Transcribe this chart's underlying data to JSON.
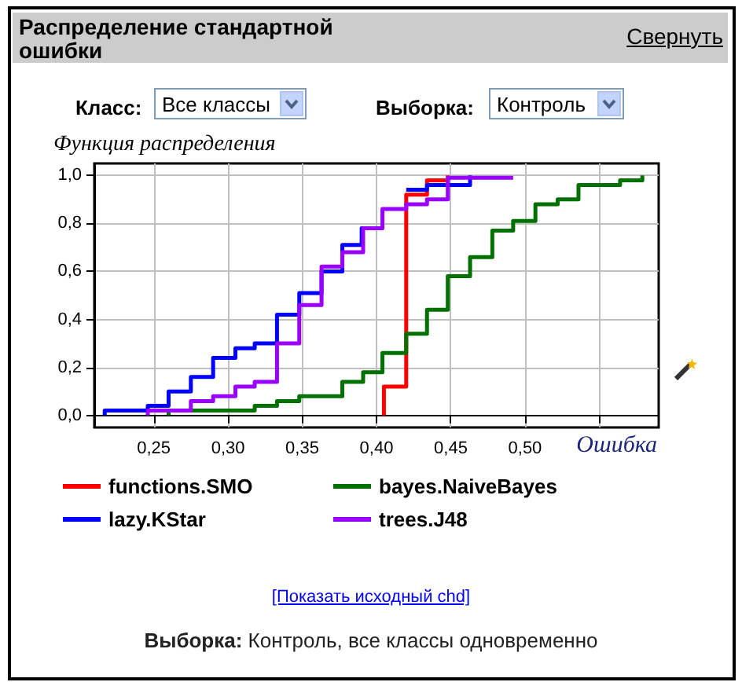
{
  "chart_data": {
    "type": "step",
    "title": "Распределение стандартной ошибки",
    "xlabel": "Ошибка",
    "ylabel": "Функция распределения",
    "annotations": [
      "Свернуть",
      "Класс:",
      "Все классы",
      "Выборка:",
      "Контроль",
      "[Показать исходный chd]",
      "Выборка:",
      "Контроль, все классы одновременно"
    ],
    "series": [
      {
        "name": "functions.SMO",
        "color": "#ff0000",
        "x": [
          0.405,
          0.405,
          0.42,
          0.434,
          0.448
        ],
        "values": [
          0,
          0.12,
          0.92,
          0.98,
          1.0
        ]
      },
      {
        "name": "bayes.NaiveBayes",
        "color": "#007000",
        "x": [
          0.26,
          0.26,
          0.318,
          0.333,
          0.348,
          0.377,
          0.391,
          0.404,
          0.42,
          0.434,
          0.448,
          0.463,
          0.478,
          0.492,
          0.507,
          0.522,
          0.536,
          0.564,
          0.579
        ],
        "values": [
          0,
          0.02,
          0.04,
          0.06,
          0.08,
          0.14,
          0.18,
          0.26,
          0.34,
          0.44,
          0.58,
          0.66,
          0.77,
          0.81,
          0.88,
          0.9,
          0.96,
          0.98,
          1.0
        ]
      },
      {
        "name": "lazy.KStar",
        "color": "#0000ff",
        "x": [
          0.217,
          0.217,
          0.246,
          0.26,
          0.275,
          0.29,
          0.305,
          0.318,
          0.333,
          0.348,
          0.363,
          0.377,
          0.39,
          0.404,
          0.42,
          0.434,
          0.463
        ],
        "values": [
          0,
          0.02,
          0.04,
          0.1,
          0.16,
          0.24,
          0.28,
          0.3,
          0.42,
          0.51,
          0.6,
          0.71,
          0.78,
          null,
          0.94,
          0.96,
          1.0
        ]
      },
      {
        "name": "trees.J48",
        "color": "#9900ff",
        "x": [
          0.246,
          0.246,
          0.275,
          0.29,
          0.305,
          0.318,
          0.333,
          0.348,
          0.363,
          0.377,
          0.391,
          0.404,
          0.42,
          0.434,
          0.448,
          0.492
        ],
        "values": [
          0,
          0.02,
          0.06,
          0.08,
          0.12,
          0.14,
          0.3,
          0.46,
          0.62,
          0.68,
          0.78,
          0.86,
          0.88,
          0.9,
          0.99,
          0.99
        ]
      }
    ],
    "xlim": [
      0.21,
      0.59
    ],
    "xticks": [
      {
        "value": 0.25,
        "label": "0,25"
      },
      {
        "value": 0.3,
        "label": "0,30"
      },
      {
        "value": 0.35,
        "label": "0,35"
      },
      {
        "value": 0.4,
        "label": "0,40"
      },
      {
        "value": 0.45,
        "label": "0,45"
      },
      {
        "value": 0.5,
        "label": "0,50"
      },
      {
        "value": 0.55,
        "label": null
      }
    ],
    "ylim": [
      -0.05,
      1.05
    ],
    "yticks": [
      {
        "value": 0,
        "label": "0,0"
      },
      {
        "value": 0.2,
        "label": "0,2"
      },
      {
        "value": 0.4,
        "label": "0,4"
      },
      {
        "value": 0.6,
        "label": "0,6"
      },
      {
        "value": 0.8,
        "label": "0,8"
      },
      {
        "value": 1.0,
        "label": "1,0"
      }
    ],
    "grid": true,
    "legend": "bottom",
    "marker": "none",
    "line_style": "solid"
  }
}
